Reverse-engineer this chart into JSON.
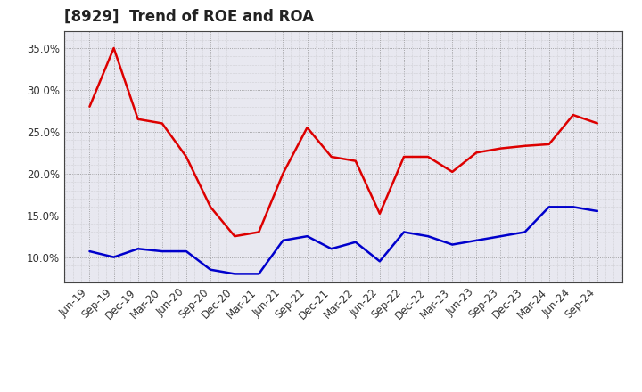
{
  "title": "[8929]  Trend of ROE and ROA",
  "x_labels": [
    "Jun-19",
    "Sep-19",
    "Dec-19",
    "Mar-20",
    "Jun-20",
    "Sep-20",
    "Dec-20",
    "Mar-21",
    "Jun-21",
    "Sep-21",
    "Dec-21",
    "Mar-22",
    "Jun-22",
    "Sep-22",
    "Dec-22",
    "Mar-23",
    "Jun-23",
    "Sep-23",
    "Dec-23",
    "Mar-24",
    "Jun-24",
    "Sep-24"
  ],
  "roe": [
    28.0,
    35.0,
    26.5,
    26.0,
    22.0,
    16.0,
    12.5,
    13.0,
    20.0,
    25.5,
    22.0,
    21.5,
    15.2,
    22.0,
    22.0,
    20.2,
    22.5,
    23.0,
    23.3,
    23.5,
    27.0,
    26.0
  ],
  "roa": [
    10.7,
    10.0,
    11.0,
    10.7,
    10.7,
    8.5,
    8.0,
    8.0,
    12.0,
    12.5,
    11.0,
    11.8,
    9.5,
    13.0,
    12.5,
    11.5,
    12.0,
    12.5,
    13.0,
    16.0,
    16.0,
    15.5
  ],
  "roe_color": "#dd0000",
  "roa_color": "#0000cc",
  "ylim_min": 7.0,
  "ylim_max": 37.0,
  "yticks": [
    10.0,
    15.0,
    20.0,
    25.0,
    30.0,
    35.0
  ],
  "background_color": "#ffffff",
  "plot_bg_color": "#e8e8f0",
  "grid_color": "#999999",
  "title_fontsize": 12,
  "legend_fontsize": 10,
  "tick_fontsize": 8.5
}
